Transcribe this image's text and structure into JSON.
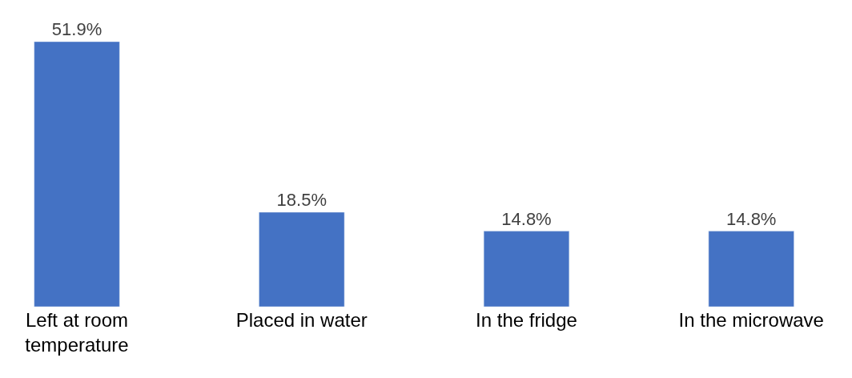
{
  "chart_data": {
    "type": "bar",
    "categories": [
      "Left at room temperature",
      "Placed in water",
      "In the fridge",
      "In the microwave"
    ],
    "values": [
      51.9,
      18.5,
      14.8,
      14.8
    ],
    "value_labels": [
      "51.9%",
      "18.5%",
      "14.8%",
      "14.8%"
    ],
    "color": "#4472c4"
  }
}
